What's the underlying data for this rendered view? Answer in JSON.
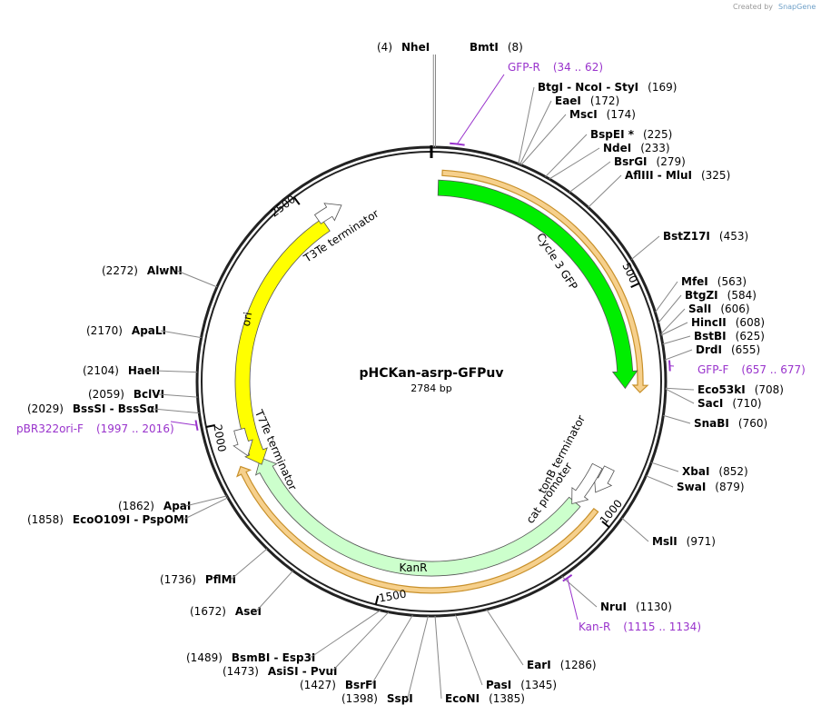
{
  "header": {
    "created_by": "Created by",
    "brand": "SnapGene"
  },
  "map": {
    "name": "pHCKan-asrp-GFPuv",
    "length": "2784 bp",
    "ticks": [
      "500",
      "1000",
      "1500",
      "2000",
      "2500"
    ],
    "features": [
      "Cycle 3 GFP",
      "KanR",
      "ori",
      "T3Te terminator",
      "T7Te terminator",
      "tonB terminator",
      "cat promoter"
    ],
    "sites": [
      {
        "name": "NheI",
        "pos": "(4)"
      },
      {
        "name": "BmtI",
        "pos": "(8)"
      },
      {
        "name": "BtgI - NcoI - StyI",
        "pos": "(169)"
      },
      {
        "name": "EaeI",
        "pos": "(172)"
      },
      {
        "name": "MscI",
        "pos": "(174)"
      },
      {
        "name": "BspEI *",
        "pos": "(225)"
      },
      {
        "name": "NdeI",
        "pos": "(233)"
      },
      {
        "name": "BsrGI",
        "pos": "(279)"
      },
      {
        "name": "AflIII - MluI",
        "pos": "(325)"
      },
      {
        "name": "BstZ17I",
        "pos": "(453)"
      },
      {
        "name": "MfeI",
        "pos": "(563)"
      },
      {
        "name": "BtgZI",
        "pos": "(584)"
      },
      {
        "name": "SalI",
        "pos": "(606)"
      },
      {
        "name": "HincII",
        "pos": "(608)"
      },
      {
        "name": "BstBI",
        "pos": "(625)"
      },
      {
        "name": "DrdI",
        "pos": "(655)"
      },
      {
        "name": "Eco53kI",
        "pos": "(708)"
      },
      {
        "name": "SacI",
        "pos": "(710)"
      },
      {
        "name": "SnaBI",
        "pos": "(760)"
      },
      {
        "name": "XbaI",
        "pos": "(852)"
      },
      {
        "name": "SwaI",
        "pos": "(879)"
      },
      {
        "name": "MslI",
        "pos": "(971)"
      },
      {
        "name": "NruI",
        "pos": "(1130)"
      },
      {
        "name": "EarI",
        "pos": "(1286)"
      },
      {
        "name": "PasI",
        "pos": "(1345)"
      },
      {
        "name": "EcoNI",
        "pos": "(1385)"
      },
      {
        "name": "SspI",
        "pos": "(1398)"
      },
      {
        "name": "BsrFI",
        "pos": "(1427)"
      },
      {
        "name": "AsiSI - PvuI",
        "pos": "(1473)"
      },
      {
        "name": "BsmBI - Esp3I",
        "pos": "(1489)"
      },
      {
        "name": "AseI",
        "pos": "(1672)"
      },
      {
        "name": "PflMI",
        "pos": "(1736)"
      },
      {
        "name": "EcoO109I - PspOMI",
        "pos": "(1858)"
      },
      {
        "name": "ApaI",
        "pos": "(1862)"
      },
      {
        "name": "BssSI - BssSαI",
        "pos": "(2029)"
      },
      {
        "name": "BclVI",
        "pos": "(2059)"
      },
      {
        "name": "HaeII",
        "pos": "(2104)"
      },
      {
        "name": "ApaLI",
        "pos": "(2170)"
      },
      {
        "name": "AlwNI",
        "pos": "(2272)"
      }
    ],
    "primers": [
      {
        "name": "GFP-R",
        "range": "(34 .. 62)"
      },
      {
        "name": "GFP-F",
        "range": "(657 .. 677)"
      },
      {
        "name": "Kan-R",
        "range": "(1115 .. 1134)"
      },
      {
        "name": "pBR322ori-F",
        "range": "(1997 .. 2016)"
      }
    ]
  }
}
